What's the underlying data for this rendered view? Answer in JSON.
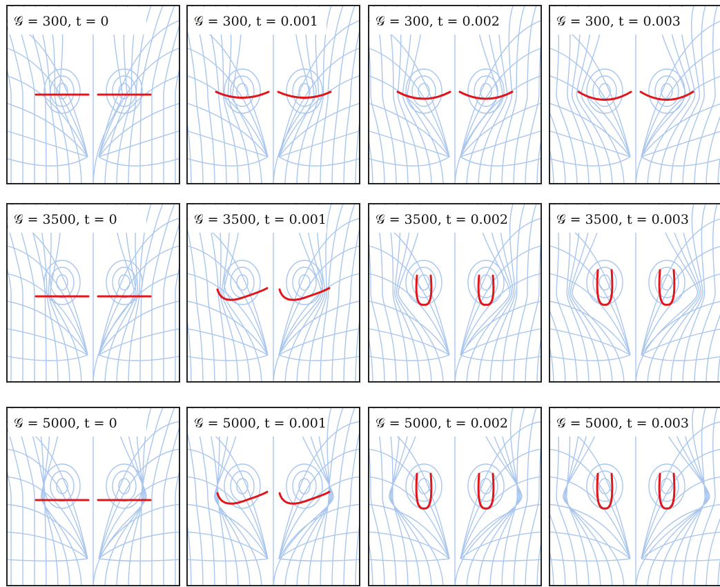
{
  "panels": [
    {
      "label": "𝒢 = 300, t = 0"
    },
    {
      "label": "𝒢 = 300, t = 0.001"
    },
    {
      "label": "𝒢 = 300, t = 0.002"
    },
    {
      "label": "𝒢 = 300, t = 0.003"
    },
    {
      "label": "𝒢 = 3500, t = 0"
    },
    {
      "label": "𝒢 = 3500, t = 0.001"
    },
    {
      "label": "𝒢 = 3500, t = 0.002"
    },
    {
      "label": "𝒢 = 3500, t = 0.003"
    },
    {
      "label": "𝒢 = 5000, t = 0"
    },
    {
      "label": "𝒢 = 5000, t = 0.001"
    },
    {
      "label": "𝒢 = 5000, t = 0.002"
    },
    {
      "label": "𝒢 = 5000, t = 0.003"
    }
  ]
}
